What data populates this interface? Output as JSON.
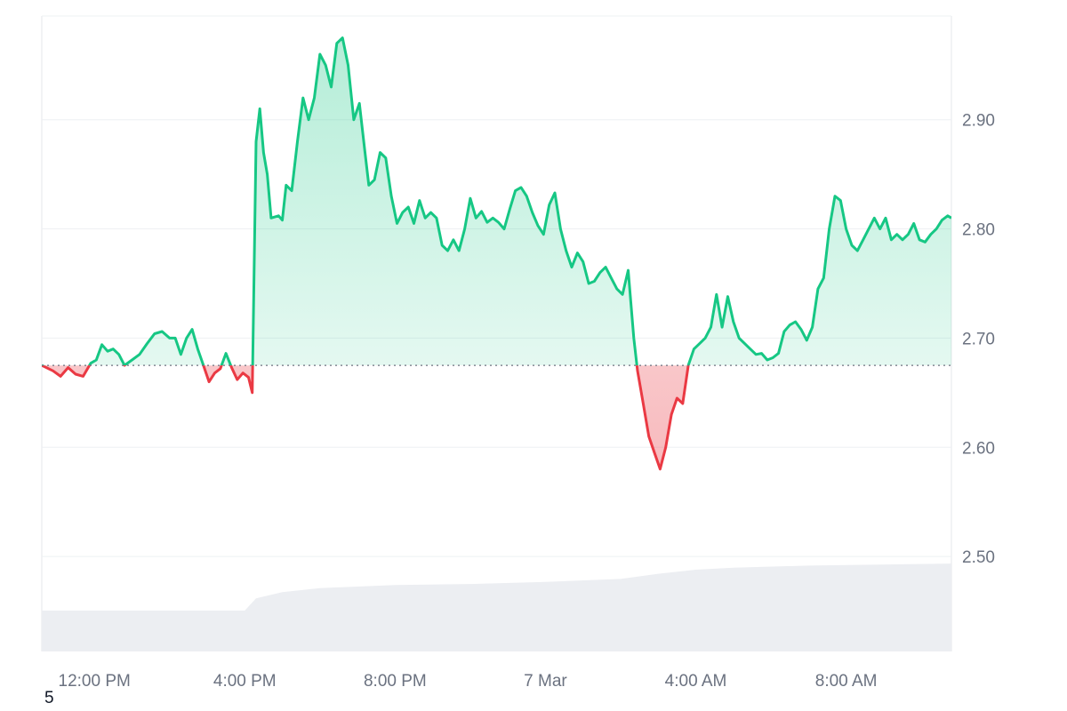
{
  "chart_data": {
    "type": "area",
    "title": "",
    "baseline": 2.675,
    "ylim": [
      2.413,
      2.995
    ],
    "yticks": [
      "2.50",
      "2.60",
      "2.70",
      "2.80",
      "2.90"
    ],
    "ytick_values": [
      2.5,
      2.6,
      2.7,
      2.8,
      2.9
    ],
    "xticks": [
      "12:00 PM",
      "4:00 PM",
      "8:00 PM",
      "7 Mar",
      "4:00 AM",
      "8:00 AM"
    ],
    "xtick_hours": [
      12,
      16,
      20,
      24,
      28,
      32
    ],
    "x_unit": "hours since 00:00, 6 Mar",
    "xlim": [
      10.6,
      34.8
    ],
    "colors": {
      "up": "#16c784",
      "down": "#ea3943",
      "grid": "#eef0f3",
      "volume": "#eceef2"
    },
    "series": [
      {
        "points": [
          [
            10.6,
            2.675
          ],
          [
            10.9,
            2.67
          ],
          [
            11.1,
            2.665
          ],
          [
            11.3,
            2.673
          ],
          [
            11.5,
            2.667
          ],
          [
            11.7,
            2.665
          ],
          [
            11.9,
            2.677
          ],
          [
            12.05,
            2.68
          ],
          [
            12.2,
            2.694
          ],
          [
            12.35,
            2.688
          ],
          [
            12.5,
            2.69
          ],
          [
            12.65,
            2.685
          ],
          [
            12.8,
            2.675
          ],
          [
            13.0,
            2.68
          ],
          [
            13.2,
            2.685
          ],
          [
            13.4,
            2.695
          ],
          [
            13.6,
            2.704
          ],
          [
            13.8,
            2.706
          ],
          [
            14.0,
            2.7
          ],
          [
            14.15,
            2.7
          ],
          [
            14.3,
            2.685
          ],
          [
            14.45,
            2.7
          ],
          [
            14.6,
            2.708
          ],
          [
            14.75,
            2.69
          ],
          [
            14.9,
            2.675
          ],
          [
            15.05,
            2.66
          ],
          [
            15.2,
            2.668
          ],
          [
            15.35,
            2.672
          ],
          [
            15.5,
            2.686
          ],
          [
            15.65,
            2.673
          ],
          [
            15.8,
            2.662
          ],
          [
            15.95,
            2.668
          ],
          [
            16.1,
            2.664
          ],
          [
            16.2,
            2.65
          ],
          [
            16.3,
            2.88
          ],
          [
            16.4,
            2.91
          ],
          [
            16.5,
            2.87
          ],
          [
            16.6,
            2.85
          ],
          [
            16.7,
            2.81
          ],
          [
            16.9,
            2.812
          ],
          [
            17.0,
            2.808
          ],
          [
            17.1,
            2.84
          ],
          [
            17.25,
            2.835
          ],
          [
            17.4,
            2.88
          ],
          [
            17.55,
            2.92
          ],
          [
            17.7,
            2.9
          ],
          [
            17.85,
            2.92
          ],
          [
            18.0,
            2.96
          ],
          [
            18.15,
            2.95
          ],
          [
            18.3,
            2.93
          ],
          [
            18.45,
            2.97
          ],
          [
            18.6,
            2.975
          ],
          [
            18.75,
            2.95
          ],
          [
            18.9,
            2.9
          ],
          [
            19.05,
            2.915
          ],
          [
            19.2,
            2.87
          ],
          [
            19.3,
            2.84
          ],
          [
            19.45,
            2.845
          ],
          [
            19.6,
            2.87
          ],
          [
            19.75,
            2.865
          ],
          [
            19.9,
            2.83
          ],
          [
            20.05,
            2.805
          ],
          [
            20.2,
            2.815
          ],
          [
            20.35,
            2.82
          ],
          [
            20.5,
            2.805
          ],
          [
            20.65,
            2.826
          ],
          [
            20.8,
            2.81
          ],
          [
            20.95,
            2.815
          ],
          [
            21.1,
            2.81
          ],
          [
            21.25,
            2.785
          ],
          [
            21.4,
            2.78
          ],
          [
            21.55,
            2.79
          ],
          [
            21.7,
            2.78
          ],
          [
            21.85,
            2.8
          ],
          [
            22.0,
            2.828
          ],
          [
            22.15,
            2.81
          ],
          [
            22.3,
            2.816
          ],
          [
            22.45,
            2.806
          ],
          [
            22.6,
            2.81
          ],
          [
            22.75,
            2.806
          ],
          [
            22.9,
            2.8
          ],
          [
            23.05,
            2.818
          ],
          [
            23.2,
            2.835
          ],
          [
            23.35,
            2.838
          ],
          [
            23.5,
            2.83
          ],
          [
            23.65,
            2.815
          ],
          [
            23.8,
            2.803
          ],
          [
            23.95,
            2.795
          ],
          [
            24.1,
            2.822
          ],
          [
            24.25,
            2.833
          ],
          [
            24.4,
            2.8
          ],
          [
            24.55,
            2.78
          ],
          [
            24.7,
            2.765
          ],
          [
            24.85,
            2.778
          ],
          [
            25.0,
            2.77
          ],
          [
            25.15,
            2.75
          ],
          [
            25.3,
            2.752
          ],
          [
            25.45,
            2.76
          ],
          [
            25.6,
            2.765
          ],
          [
            25.75,
            2.755
          ],
          [
            25.9,
            2.745
          ],
          [
            26.05,
            2.74
          ],
          [
            26.2,
            2.762
          ],
          [
            26.35,
            2.7
          ],
          [
            26.45,
            2.67
          ],
          [
            26.6,
            2.64
          ],
          [
            26.75,
            2.61
          ],
          [
            26.9,
            2.595
          ],
          [
            27.05,
            2.58
          ],
          [
            27.2,
            2.6
          ],
          [
            27.35,
            2.63
          ],
          [
            27.5,
            2.645
          ],
          [
            27.65,
            2.64
          ],
          [
            27.8,
            2.675
          ],
          [
            27.95,
            2.69
          ],
          [
            28.1,
            2.695
          ],
          [
            28.25,
            2.7
          ],
          [
            28.4,
            2.71
          ],
          [
            28.55,
            2.74
          ],
          [
            28.7,
            2.71
          ],
          [
            28.85,
            2.738
          ],
          [
            29.0,
            2.715
          ],
          [
            29.15,
            2.7
          ],
          [
            29.3,
            2.695
          ],
          [
            29.45,
            2.69
          ],
          [
            29.6,
            2.685
          ],
          [
            29.75,
            2.686
          ],
          [
            29.9,
            2.68
          ],
          [
            30.05,
            2.682
          ],
          [
            30.2,
            2.686
          ],
          [
            30.35,
            2.706
          ],
          [
            30.5,
            2.712
          ],
          [
            30.65,
            2.715
          ],
          [
            30.8,
            2.708
          ],
          [
            30.95,
            2.698
          ],
          [
            31.1,
            2.71
          ],
          [
            31.25,
            2.745
          ],
          [
            31.4,
            2.755
          ],
          [
            31.55,
            2.8
          ],
          [
            31.7,
            2.83
          ],
          [
            31.85,
            2.826
          ],
          [
            32.0,
            2.8
          ],
          [
            32.15,
            2.785
          ],
          [
            32.3,
            2.78
          ],
          [
            32.45,
            2.79
          ],
          [
            32.6,
            2.8
          ],
          [
            32.75,
            2.81
          ],
          [
            32.9,
            2.8
          ],
          [
            33.05,
            2.81
          ],
          [
            33.2,
            2.79
          ],
          [
            33.35,
            2.795
          ],
          [
            33.5,
            2.79
          ],
          [
            33.65,
            2.795
          ],
          [
            33.8,
            2.805
          ],
          [
            33.95,
            2.79
          ],
          [
            34.1,
            2.788
          ],
          [
            34.25,
            2.795
          ],
          [
            34.4,
            2.8
          ],
          [
            34.55,
            2.808
          ],
          [
            34.7,
            2.812
          ],
          [
            34.8,
            2.81
          ]
        ]
      }
    ],
    "volume_profile": [
      [
        10.6,
        0.4
      ],
      [
        16.0,
        0.4
      ],
      [
        16.3,
        0.52
      ],
      [
        17.0,
        0.58
      ],
      [
        18.0,
        0.62
      ],
      [
        20.0,
        0.65
      ],
      [
        22.0,
        0.66
      ],
      [
        24.0,
        0.68
      ],
      [
        26.0,
        0.71
      ],
      [
        27.0,
        0.76
      ],
      [
        28.0,
        0.8
      ],
      [
        29.0,
        0.82
      ],
      [
        31.0,
        0.84
      ],
      [
        34.8,
        0.86
      ]
    ]
  },
  "footer": {
    "corner_label": "5"
  }
}
